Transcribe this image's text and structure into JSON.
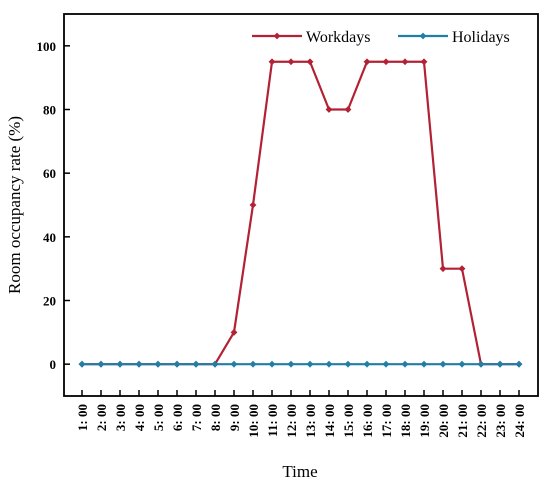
{
  "chart_data": {
    "type": "line",
    "title": "",
    "xlabel": "Time",
    "ylabel": "Room occupancy rate (%)",
    "ylim": [
      -10,
      110
    ],
    "yticks": [
      0,
      20,
      40,
      60,
      80,
      100
    ],
    "legend_position": "top-right",
    "grid": false,
    "categories": [
      "1: 00",
      "2: 00",
      "3: 00",
      "4: 00",
      "5: 00",
      "6: 00",
      "7: 00",
      "8: 00",
      "9: 00",
      "10: 00",
      "11: 00",
      "12: 00",
      "13: 00",
      "14: 00",
      "15: 00",
      "16: 00",
      "17: 00",
      "18: 00",
      "19: 00",
      "20: 00",
      "21: 00",
      "22: 00",
      "23: 00",
      "24: 00"
    ],
    "series": [
      {
        "name": "Workdays",
        "color": "#b22234",
        "values": [
          0,
          0,
          0,
          0,
          0,
          0,
          0,
          0,
          10,
          50,
          95,
          95,
          95,
          80,
          80,
          95,
          95,
          95,
          95,
          30,
          30,
          0,
          0,
          0
        ]
      },
      {
        "name": "Holidays",
        "color": "#1f7fa6",
        "values": [
          0,
          0,
          0,
          0,
          0,
          0,
          0,
          0,
          0,
          0,
          0,
          0,
          0,
          0,
          0,
          0,
          0,
          0,
          0,
          0,
          0,
          0,
          0,
          0
        ]
      }
    ]
  }
}
